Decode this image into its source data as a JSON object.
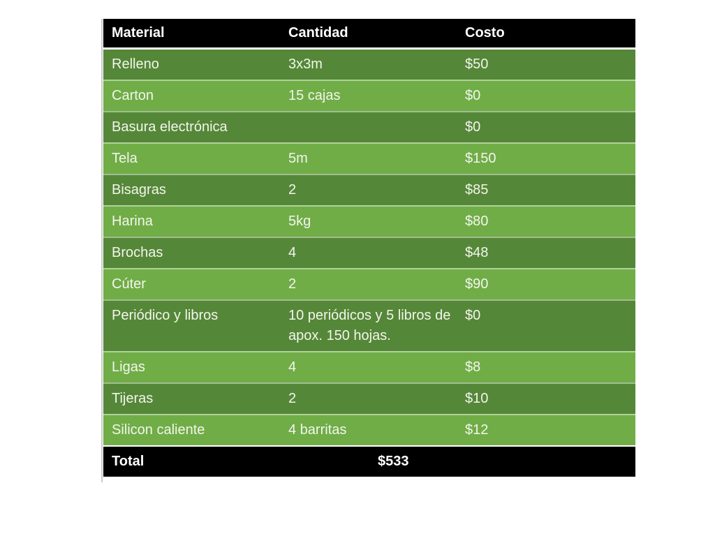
{
  "table": {
    "header": {
      "material": "Material",
      "cantidad": "Cantidad",
      "costo": "Costo"
    },
    "rows": [
      {
        "material": "Relleno",
        "cantidad": "3x3m",
        "costo": "$50"
      },
      {
        "material": "Carton",
        "cantidad": "15 cajas",
        "costo": "$0"
      },
      {
        "material": "Basura electrónica",
        "cantidad": "",
        "costo": "$0"
      },
      {
        "material": "Tela",
        "cantidad": "5m",
        "costo": "$150"
      },
      {
        "material": "Bisagras",
        "cantidad": "2",
        "costo": "$85"
      },
      {
        "material": "Harina",
        "cantidad": "5kg",
        "costo": "$80"
      },
      {
        "material": "Brochas",
        "cantidad": "4",
        "costo": "$48"
      },
      {
        "material": "Cúter",
        "cantidad": "2",
        "costo": "$90"
      },
      {
        "material": "Periódico y libros",
        "cantidad": "10 periódicos y 5 libros de apox. 150 hojas.",
        "costo": "$0"
      },
      {
        "material": "Ligas",
        "cantidad": "4",
        "costo": "$8"
      },
      {
        "material": "Tijeras",
        "cantidad": "2",
        "costo": "$10"
      },
      {
        "material": "Silicon caliente",
        "cantidad": "4 barritas",
        "costo": "$12"
      }
    ],
    "total": {
      "label": "Total",
      "value": "$533"
    },
    "colors": {
      "header_bg": "#000000",
      "row_dark": "#558738",
      "row_light": "#70AD47",
      "text": "#F2F5EC"
    }
  }
}
